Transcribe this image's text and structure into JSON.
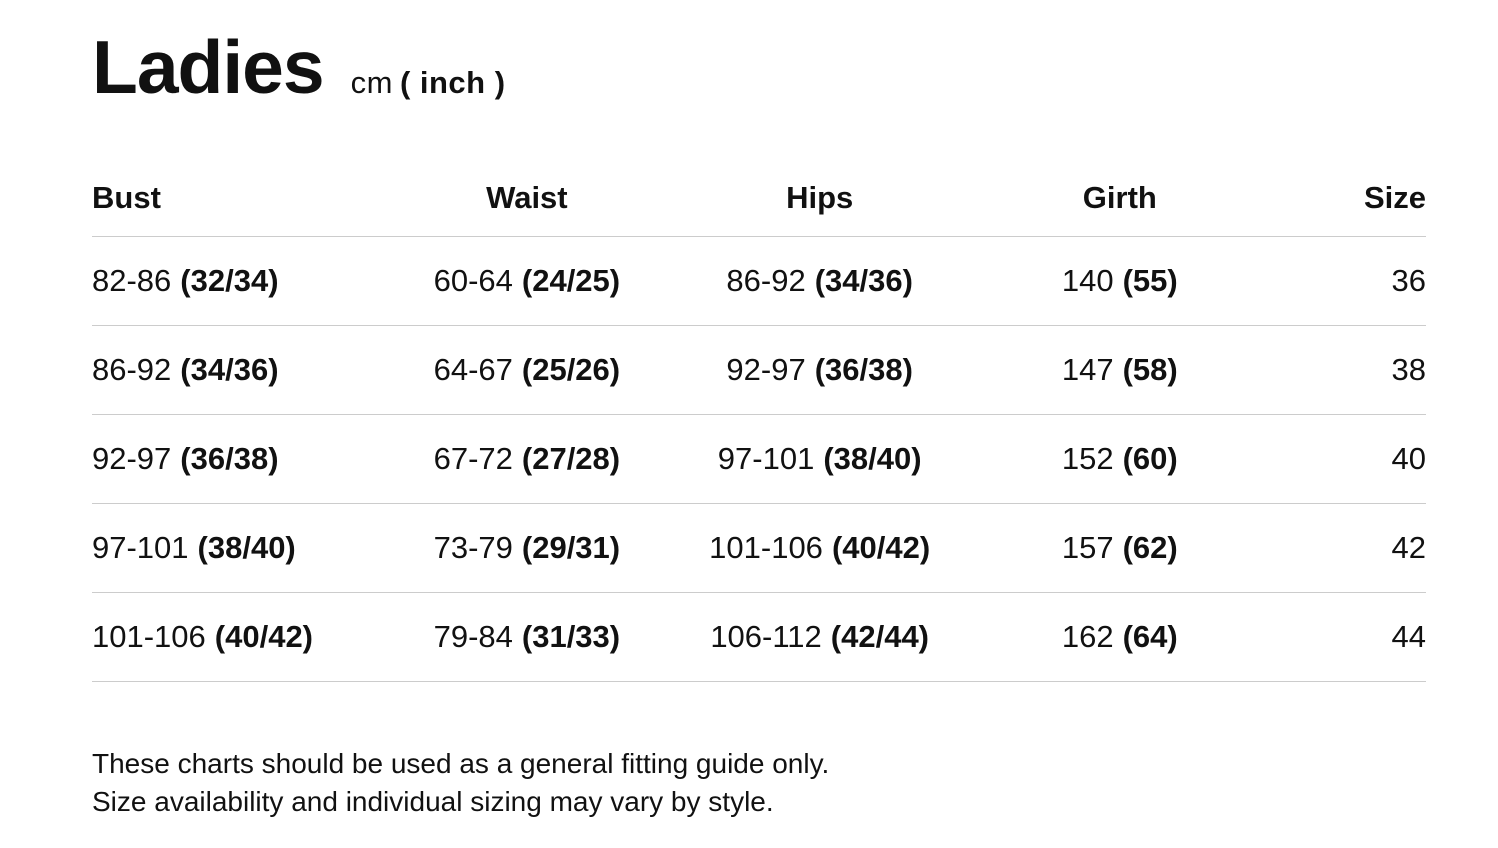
{
  "header": {
    "title": "Ladies",
    "unit_cm": "cm",
    "unit_inch": "( inch )"
  },
  "table": {
    "columns": [
      "Bust",
      "Waist",
      "Hips",
      "Girth",
      "Size"
    ],
    "rows": [
      {
        "bust": {
          "cm": "82-86",
          "inch": "(32/34)"
        },
        "waist": {
          "cm": "60-64",
          "inch": "(24/25)"
        },
        "hips": {
          "cm": "86-92",
          "inch": "(34/36)"
        },
        "girth": {
          "cm": "140",
          "inch": "(55)"
        },
        "size": "36"
      },
      {
        "bust": {
          "cm": "86-92",
          "inch": "(34/36)"
        },
        "waist": {
          "cm": "64-67",
          "inch": "(25/26)"
        },
        "hips": {
          "cm": "92-97",
          "inch": "(36/38)"
        },
        "girth": {
          "cm": "147",
          "inch": "(58)"
        },
        "size": "38"
      },
      {
        "bust": {
          "cm": "92-97",
          "inch": "(36/38)"
        },
        "waist": {
          "cm": "67-72",
          "inch": "(27/28)"
        },
        "hips": {
          "cm": "97-101",
          "inch": "(38/40)"
        },
        "girth": {
          "cm": "152",
          "inch": "(60)"
        },
        "size": "40"
      },
      {
        "bust": {
          "cm": "97-101",
          "inch": "(38/40)"
        },
        "waist": {
          "cm": "73-79",
          "inch": "(29/31)"
        },
        "hips": {
          "cm": "101-106",
          "inch": "(40/42)"
        },
        "girth": {
          "cm": "157",
          "inch": "(62)"
        },
        "size": "42"
      },
      {
        "bust": {
          "cm": "101-106",
          "inch": "(40/42)"
        },
        "waist": {
          "cm": "79-84",
          "inch": "(31/33)"
        },
        "hips": {
          "cm": "106-112",
          "inch": "(42/44)"
        },
        "girth": {
          "cm": "162",
          "inch": "(64)"
        },
        "size": "44"
      }
    ]
  },
  "footer": {
    "line1": "These charts should be used as a general fitting guide only.",
    "line2": "Size availability and individual sizing may vary by style."
  },
  "colors": {
    "text": "#111111",
    "divider": "#cccccc",
    "background": "#ffffff"
  }
}
